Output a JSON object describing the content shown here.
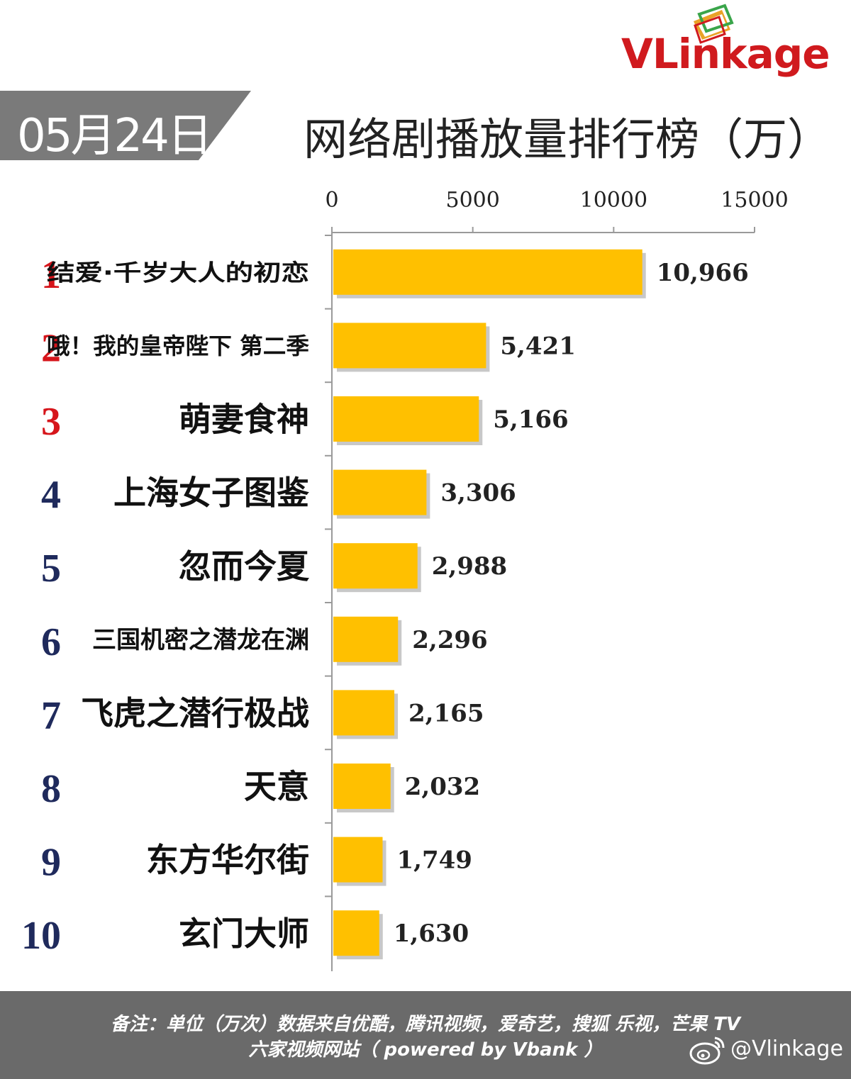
{
  "brand": {
    "logo_text": "VLinkage"
  },
  "header": {
    "date": "05月24日",
    "title": "网络剧播放量排行榜（万）"
  },
  "chart_data": {
    "type": "bar",
    "orientation": "horizontal",
    "title": "网络剧播放量排行榜（万）",
    "xlim": [
      0,
      15000
    ],
    "ticks": [
      "0",
      "5000",
      "10000",
      "15000"
    ],
    "axis_position": "top",
    "grid": false,
    "ranks": [
      "1",
      "2",
      "3",
      "4",
      "5",
      "6",
      "7",
      "8",
      "9",
      "10"
    ],
    "categories": [
      "结爱·千岁大人的初恋",
      "哦！我的皇帝陛下 第二季",
      "萌妻食神",
      "上海女子图鉴",
      "忽而今夏",
      "三国机密之潜龙在渊",
      "飞虎之潜行极战",
      "天意",
      "东方华尔街",
      "玄门大师"
    ],
    "values": [
      10966,
      5421,
      5166,
      3306,
      2988,
      2296,
      2165,
      2032,
      1749,
      1630
    ],
    "value_labels": [
      "10,966",
      "5,421",
      "5,166",
      "3,306",
      "2,988",
      "2,296",
      "2,165",
      "2,032",
      "1,749",
      "1,630"
    ],
    "bar_color": "#ffc000",
    "rank_colors": {
      "top3": "#d6151b",
      "rest": "#1f2a5c"
    }
  },
  "footer": {
    "note": "备注：单位（万次）数据来自优酷，腾讯视频，爱奇艺，搜狐 乐视，芒果 TV",
    "powered": "六家视频网站（ powered by Vbank ）",
    "weibo_handle": "@Vlinkage"
  }
}
